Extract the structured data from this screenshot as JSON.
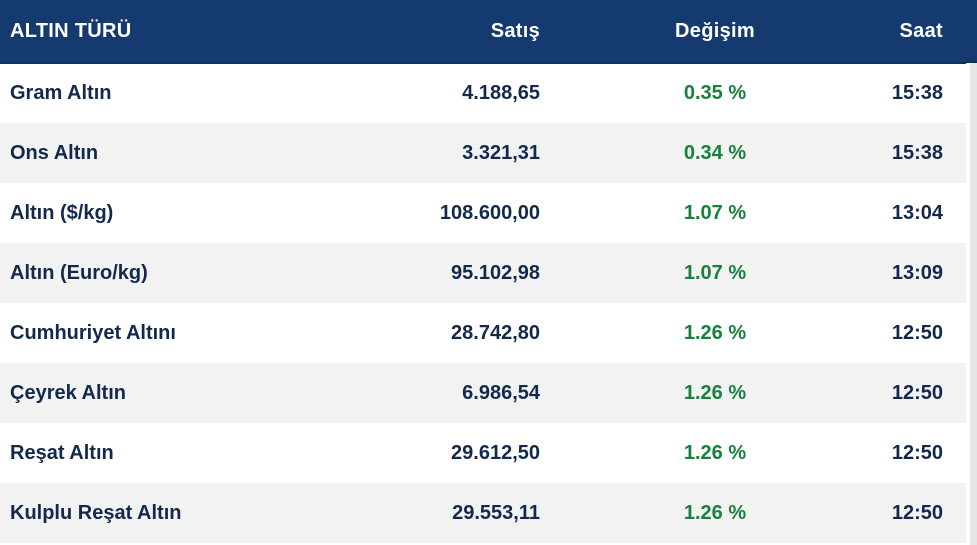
{
  "table": {
    "columns": [
      {
        "id": "name",
        "label": "ALTIN TÜRÜ",
        "align": "left"
      },
      {
        "id": "satis",
        "label": "Satış",
        "align": "right"
      },
      {
        "id": "degisim",
        "label": "Değişim",
        "align": "center"
      },
      {
        "id": "saat",
        "label": "Saat",
        "align": "right"
      }
    ],
    "rows": [
      {
        "name": "Gram Altın",
        "satis": "4.188,65",
        "degisim": "0.35 %",
        "saat": "15:38"
      },
      {
        "name": "Ons Altın",
        "satis": "3.321,31",
        "degisim": "0.34 %",
        "saat": "15:38"
      },
      {
        "name": "Altın ($/kg)",
        "satis": "108.600,00",
        "degisim": "1.07 %",
        "saat": "13:04"
      },
      {
        "name": "Altın (Euro/kg)",
        "satis": "95.102,98",
        "degisim": "1.07 %",
        "saat": "13:09"
      },
      {
        "name": "Cumhuriyet Altını",
        "satis": "28.742,80",
        "degisim": "1.26 %",
        "saat": "12:50"
      },
      {
        "name": "Çeyrek Altın",
        "satis": "6.986,54",
        "degisim": "1.26 %",
        "saat": "12:50"
      },
      {
        "name": "Reşat Altın",
        "satis": "29.612,50",
        "degisim": "1.26 %",
        "saat": "12:50"
      },
      {
        "name": "Kulplu Reşat Altın",
        "satis": "29.553,11",
        "degisim": "1.26 %",
        "saat": "12:50"
      }
    ]
  },
  "colors": {
    "header_bg": "#153a70",
    "header_bg_dark": "#0e2f5c",
    "header_text": "#ffffff",
    "row_text": "#13294b",
    "positive_change": "#17813d",
    "row_bg": "#ffffff",
    "row_alt_bg": "#f2f2f2",
    "scrollbar_track": "#e6e6e6"
  }
}
